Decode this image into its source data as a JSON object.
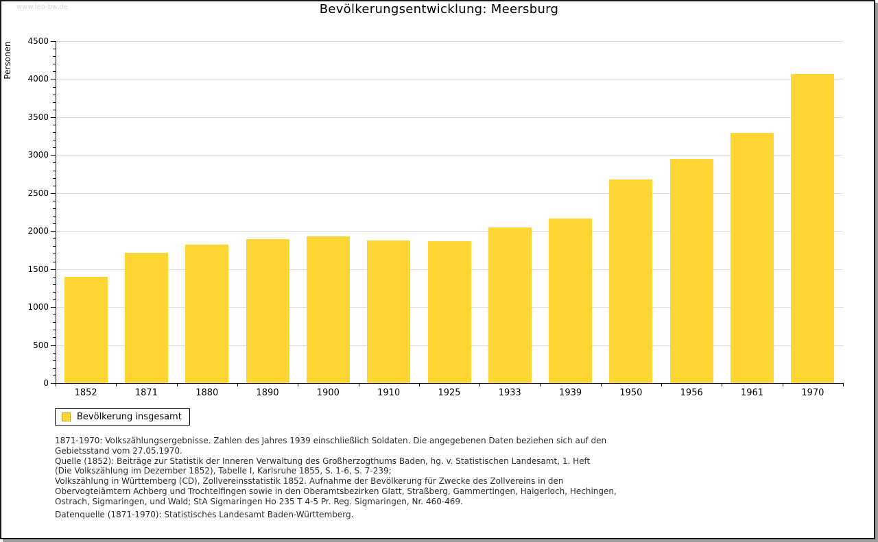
{
  "watermark": "www.leo-bw.de",
  "header": {
    "title": "Bevölkerungsentwicklung: Meersburg"
  },
  "chart_data": {
    "type": "bar",
    "title": "Bevölkerungsentwicklung: Meersburg",
    "xlabel": "",
    "ylabel": "Personen",
    "categories": [
      "1852",
      "1871",
      "1880",
      "1890",
      "1900",
      "1910",
      "1925",
      "1933",
      "1939",
      "1950",
      "1956",
      "1961",
      "1970"
    ],
    "values": [
      1400,
      1715,
      1825,
      1895,
      1930,
      1880,
      1865,
      2045,
      2165,
      2675,
      2950,
      3295,
      4070
    ],
    "ylim": [
      0,
      4500
    ],
    "ytick_step": 500,
    "yminor_step": 100,
    "grid": true,
    "legend_position": "bottom-left",
    "series_name": "Bevölkerung insgesamt"
  },
  "legend": {
    "label": "Bevölkerung insgesamt"
  },
  "colors": {
    "bar": "#fdd633",
    "swatch_border": "#c2a01f",
    "grid": "#dedede",
    "axis": "#000000",
    "watermark": "#d6d6d6",
    "text": "#2b2b2b"
  },
  "footnotes": [
    "1871-1970: Volkszählungsergebnisse. Zahlen des Jahres 1939 einschließlich Soldaten. Die angegebenen Daten beziehen sich auf den",
    "Gebietsstand vom 27.05.1970.",
    "Quelle (1852): Beiträge zur Statistik der Inneren Verwaltung des Großherzogthums Baden, hg. v. Statistischen Landesamt, 1. Heft",
    "(Die Volkszählung im Dezember 1852), Tabelle I, Karlsruhe 1855, S. 1-6, S. 7-239;",
    "Volkszählung in Württemberg (CD), Zollvereinsstatistik 1852. Aufnahme der Bevölkerung für Zwecke des Zollvereins in den",
    "Obervogteiämtern Achberg und Trochtelfingen sowie in den Oberamtsbezirken Glatt, Straßberg, Gammertingen, Haigerloch, Hechingen,",
    "Ostrach, Sigmaringen, und Wald; StA Sigmaringen Ho 235 T 4-5 Pr. Reg. Sigmaringen, Nr. 460-469."
  ],
  "datasource": "Datenquelle (1871-1970): Statistisches Landesamt Baden-Württemberg."
}
